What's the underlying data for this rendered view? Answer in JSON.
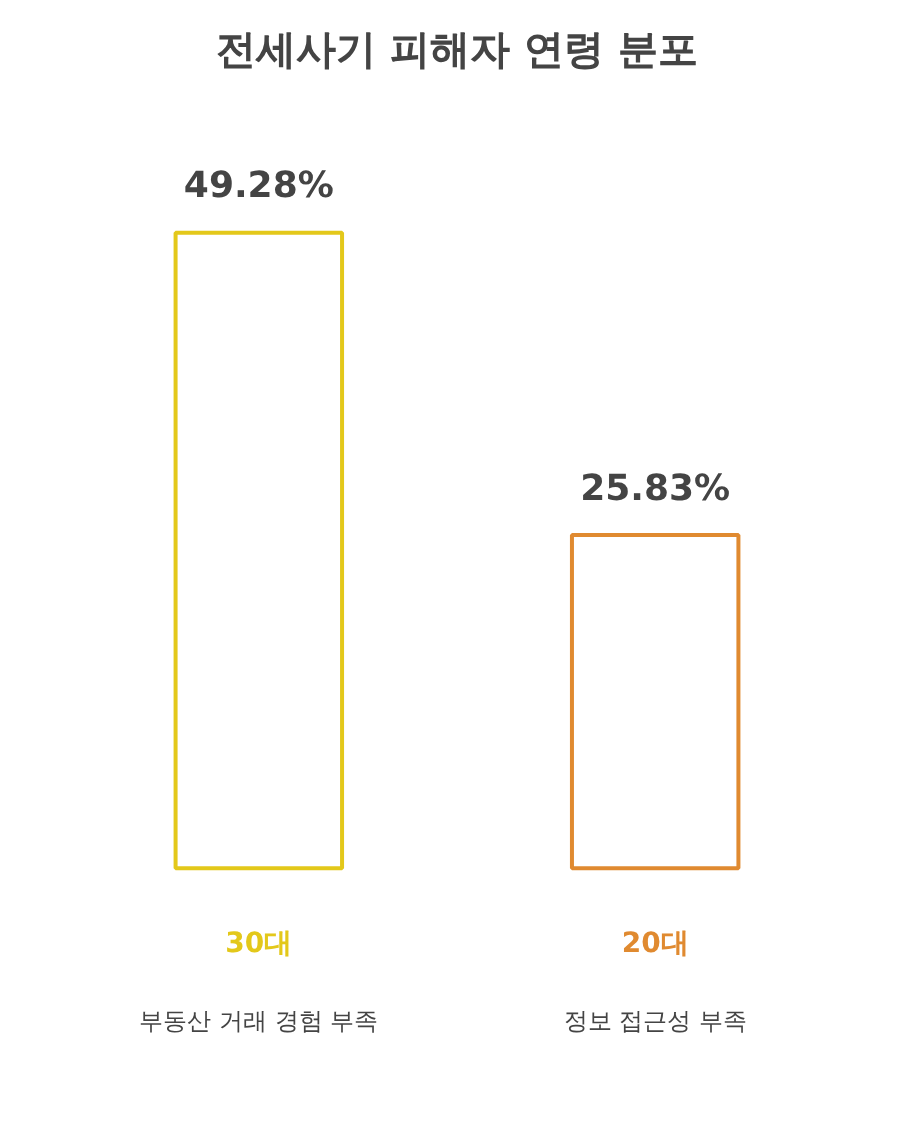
{
  "chart_data": {
    "type": "bar",
    "title": "전세사기 피해자 연령 분포",
    "categories": [
      "30대",
      "20대"
    ],
    "values": [
      49.28,
      25.83
    ],
    "colors": [
      "#e3c81a",
      "#e08a30"
    ],
    "value_labels": [
      "49.28%",
      "25.83%"
    ],
    "annotations": [
      "부동산 거래 경험 부족",
      "정보 접근성 부족"
    ]
  }
}
